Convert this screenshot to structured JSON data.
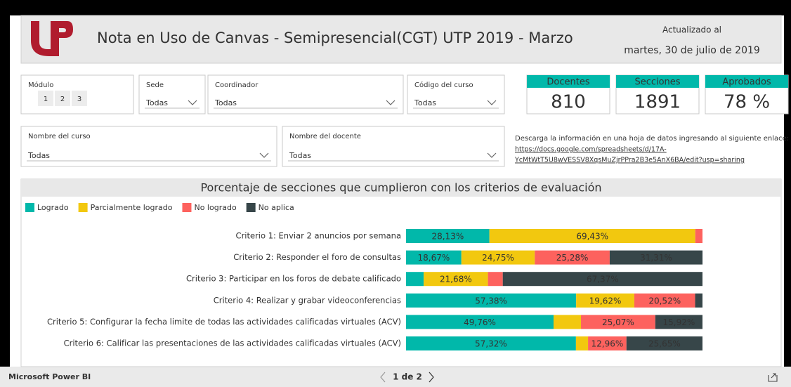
{
  "header": {
    "title": "Nota en Uso de Canvas - Semipresencial(CGT) UTP 2019 - Marzo",
    "updated_label": "Actualizado al",
    "updated_date": "martes, 30 de julio de 2019"
  },
  "filters": [
    {
      "label": "Módulo",
      "options": [
        "1",
        "2",
        "3"
      ]
    },
    {
      "label": "Sede",
      "value": "Todas"
    },
    {
      "label": "Coordinador",
      "value": "Todas"
    },
    {
      "label": "Código del curso",
      "value": "Todas"
    },
    {
      "label": "Nombre del curso",
      "value": "Todas"
    },
    {
      "label": "Nombre del docente",
      "value": "Todas"
    }
  ],
  "cards": [
    {
      "label": "Docentes",
      "value": 810
    },
    {
      "label": "Secciones",
      "value": 1891
    },
    {
      "label": "Aprobados",
      "value": "78 %"
    }
  ],
  "download": {
    "text": "Descarga la información en una hoja de datos ingresando al siguiente enlace:",
    "link": [
      "https://docs.google.com/spreadsheets/d/17A-",
      "YcMtWtT5U8wVESSV8XqsMuZjrPPra2B3e5AnX6BA/edit?usp=sharing"
    ]
  },
  "chart_data": {
    "type": "stacked_barh",
    "title": "Porcentaje de secciones que cumplieron con los criterios de evaluación",
    "categories": [
      "Criterio 1: Enviar 2 anuncios por semana",
      "Criterio 2: Responder el foro de consultas",
      "Criterio 3: Participar en los foros de debate calificado",
      "Criterio 4: Realizar y grabar videoconferencias",
      "Criterio 5: Configurar la fecha limite de todas las actividades calificadas virtuales (ACV)",
      "Criterio 6: Calificar las presentaciones de las actividades calificadas virtuales (ACV)"
    ],
    "xlim": [
      0,
      100
    ],
    "series": [
      {
        "name": "Logrado",
        "color": "#01b8aa",
        "values": [
          28.13,
          18.67,
          5.95,
          57.38,
          49.76,
          57.32
        ],
        "value_labels": [
          "28,13%",
          "18,67%",
          null,
          "57,38%",
          "49,76%",
          "57,32%"
        ]
      },
      {
        "name": "Parcialmente logrado",
        "color": "#f2c80f",
        "values": [
          69.43,
          24.75,
          21.68,
          19.62,
          9.25,
          4.07
        ],
        "value_labels": [
          "69,43%",
          "24,75%",
          "21,68%",
          "19,62%",
          null,
          null
        ]
      },
      {
        "name": "No logrado",
        "color": "#fd625e",
        "values": [
          2.44,
          25.28,
          5.0,
          20.52,
          25.07,
          12.96
        ],
        "value_labels": [
          null,
          "25,28%",
          null,
          "20,52%",
          "25,07%",
          "12,96%"
        ]
      },
      {
        "name": "No aplica",
        "color": "#374649",
        "values": [
          0,
          31.31,
          67.37,
          2.48,
          15.92,
          25.65
        ],
        "value_labels": [
          null,
          "31,31%",
          "67,37%",
          null,
          "15,92%",
          "25,65%"
        ]
      }
    ],
    "legend": "top-left"
  },
  "footer": {
    "brand": "Microsoft Power BI",
    "page": "1 de 2"
  }
}
